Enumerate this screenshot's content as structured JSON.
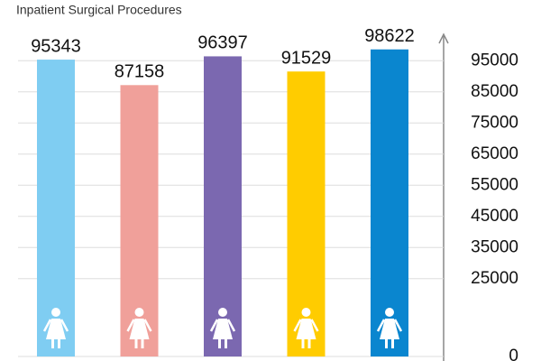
{
  "chart_data": {
    "type": "bar",
    "title": "Inpatient Surgical Procedures",
    "values": [
      95343,
      87158,
      96397,
      91529,
      98622
    ],
    "colors": [
      "#7fcdf2",
      "#f0a09a",
      "#7b68b0",
      "#ffcc00",
      "#0a86cf"
    ],
    "ylim": [
      0,
      100000
    ],
    "yticks": [
      0,
      25000,
      35000,
      45000,
      55000,
      65000,
      75000,
      85000,
      95000
    ],
    "grid": true
  }
}
